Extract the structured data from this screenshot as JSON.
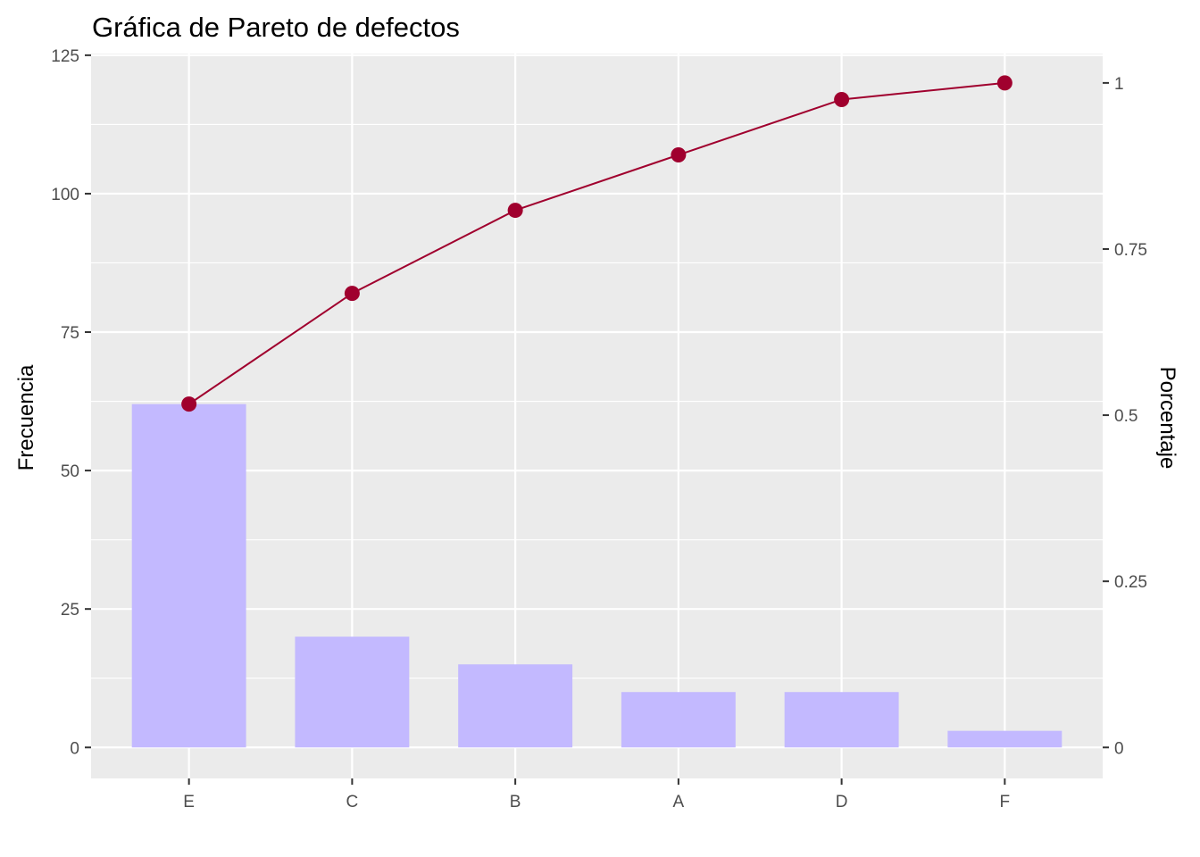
{
  "chart_data": {
    "type": "bar",
    "title": "Gráfica de Pareto de defectos",
    "xlabel": "",
    "ylabel": "Frecuencia",
    "y2label": "Porcentaje",
    "categories": [
      "E",
      "C",
      "B",
      "A",
      "D",
      "F"
    ],
    "series": [
      {
        "type": "bar",
        "axis": "left",
        "values": [
          62,
          20,
          15,
          10,
          10,
          3
        ],
        "color": "#c3b9ff"
      },
      {
        "type": "line",
        "axis": "right",
        "values": [
          0.5167,
          0.6833,
          0.8083,
          0.8917,
          0.975,
          1.0
        ],
        "color": "#a0002e"
      }
    ],
    "ylim": [
      -5.6,
      125.3
    ],
    "y_ticks": [
      0,
      25,
      50,
      75,
      100,
      125
    ],
    "y2_ticks": [
      0,
      0.25,
      0.5,
      0.75,
      1
    ],
    "y2_tick_labels": [
      "0",
      "0.25",
      "0.5",
      "0.75",
      "1"
    ],
    "grid": true,
    "panel_background": "#ebebeb",
    "gridline_color": "#ffffff",
    "legend": "none"
  }
}
